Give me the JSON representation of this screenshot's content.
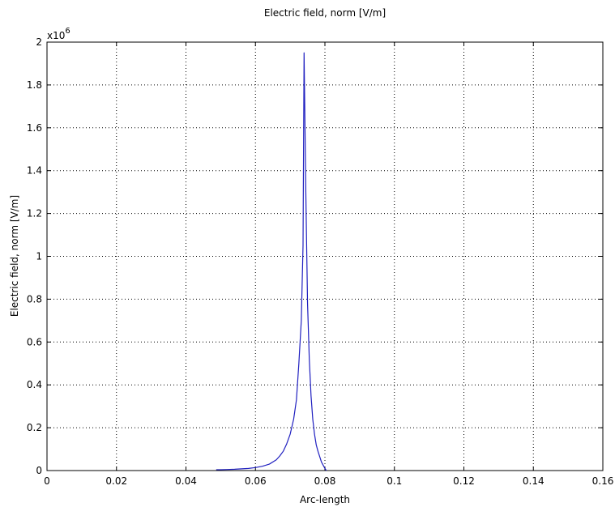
{
  "chart_data": {
    "type": "line",
    "title": "Electric field, norm [V/m]",
    "xlabel": "Arc-length",
    "ylabel": "Electric field, norm [V/m]",
    "y_exponent_label": "x10",
    "y_exponent_power": "6",
    "xlim": [
      0,
      0.16
    ],
    "ylim": [
      0,
      2
    ],
    "grid": true,
    "x_ticks": [
      "0",
      "0.02",
      "0.04",
      "0.06",
      "0.08",
      "0.1",
      "0.12",
      "0.14",
      "0.16"
    ],
    "y_ticks": [
      "0",
      "0.2",
      "0.4",
      "0.6",
      "0.8",
      "1",
      "1.2",
      "1.4",
      "1.6",
      "1.8",
      "2"
    ],
    "line_color": "#2020c0",
    "series": [
      {
        "x": [
          0.0487,
          0.05,
          0.052,
          0.054,
          0.056,
          0.058,
          0.06,
          0.062,
          0.064,
          0.066,
          0.067,
          0.068,
          0.069,
          0.07,
          0.071,
          0.0718,
          0.0725,
          0.0732,
          0.0737,
          0.074,
          0.0745,
          0.075,
          0.0755,
          0.076,
          0.0765,
          0.077,
          0.0775,
          0.078,
          0.079,
          0.08,
          0.0804
        ],
        "values": [
          0.004,
          0.004,
          0.005,
          0.006,
          0.008,
          0.01,
          0.014,
          0.02,
          0.03,
          0.05,
          0.068,
          0.09,
          0.125,
          0.17,
          0.24,
          0.33,
          0.5,
          0.7,
          1.05,
          1.95,
          1.3,
          0.78,
          0.52,
          0.35,
          0.24,
          0.17,
          0.12,
          0.09,
          0.04,
          0.01,
          0.0
        ]
      }
    ]
  }
}
